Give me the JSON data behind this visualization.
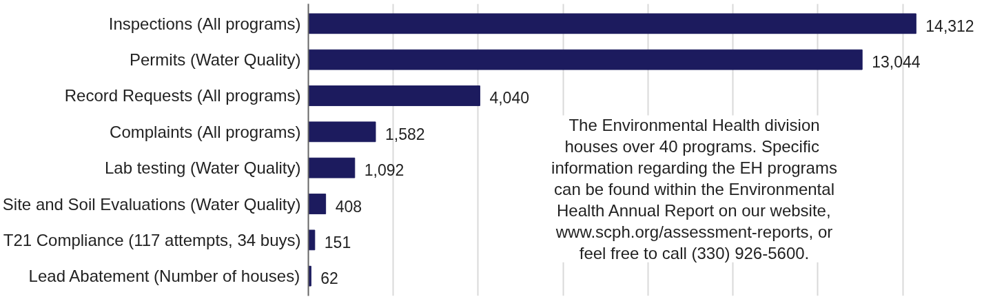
{
  "chart_data": {
    "type": "bar",
    "orientation": "horizontal",
    "categories": [
      "Inspections (All programs)",
      "Permits (Water Quality)",
      "Record Requests (All programs)",
      "Complaints (All programs)",
      "Lab testing (Water Quality)",
      "Site and Soil Evaluations (Water Quality)",
      "T21 Compliance (117 attempts, 34 buys)",
      "Lead Abatement (Number of houses)"
    ],
    "values": [
      14312,
      13044,
      4040,
      1582,
      1092,
      408,
      151,
      62
    ],
    "value_labels": [
      "14,312",
      "13,044",
      "4,040",
      "1,582",
      "1,092",
      "408",
      "151",
      "62"
    ],
    "color": "#1c1b5e",
    "tick_labels": "y",
    "grid": "x",
    "annotations": [
      "The Environmental Health division houses over 40 programs.  Specific information regarding the EH programs can be found within the Environmental Health Annual Report on our website, www.scph.org/assessment-reports, or feel free to call (330) 926-5600."
    ]
  }
}
